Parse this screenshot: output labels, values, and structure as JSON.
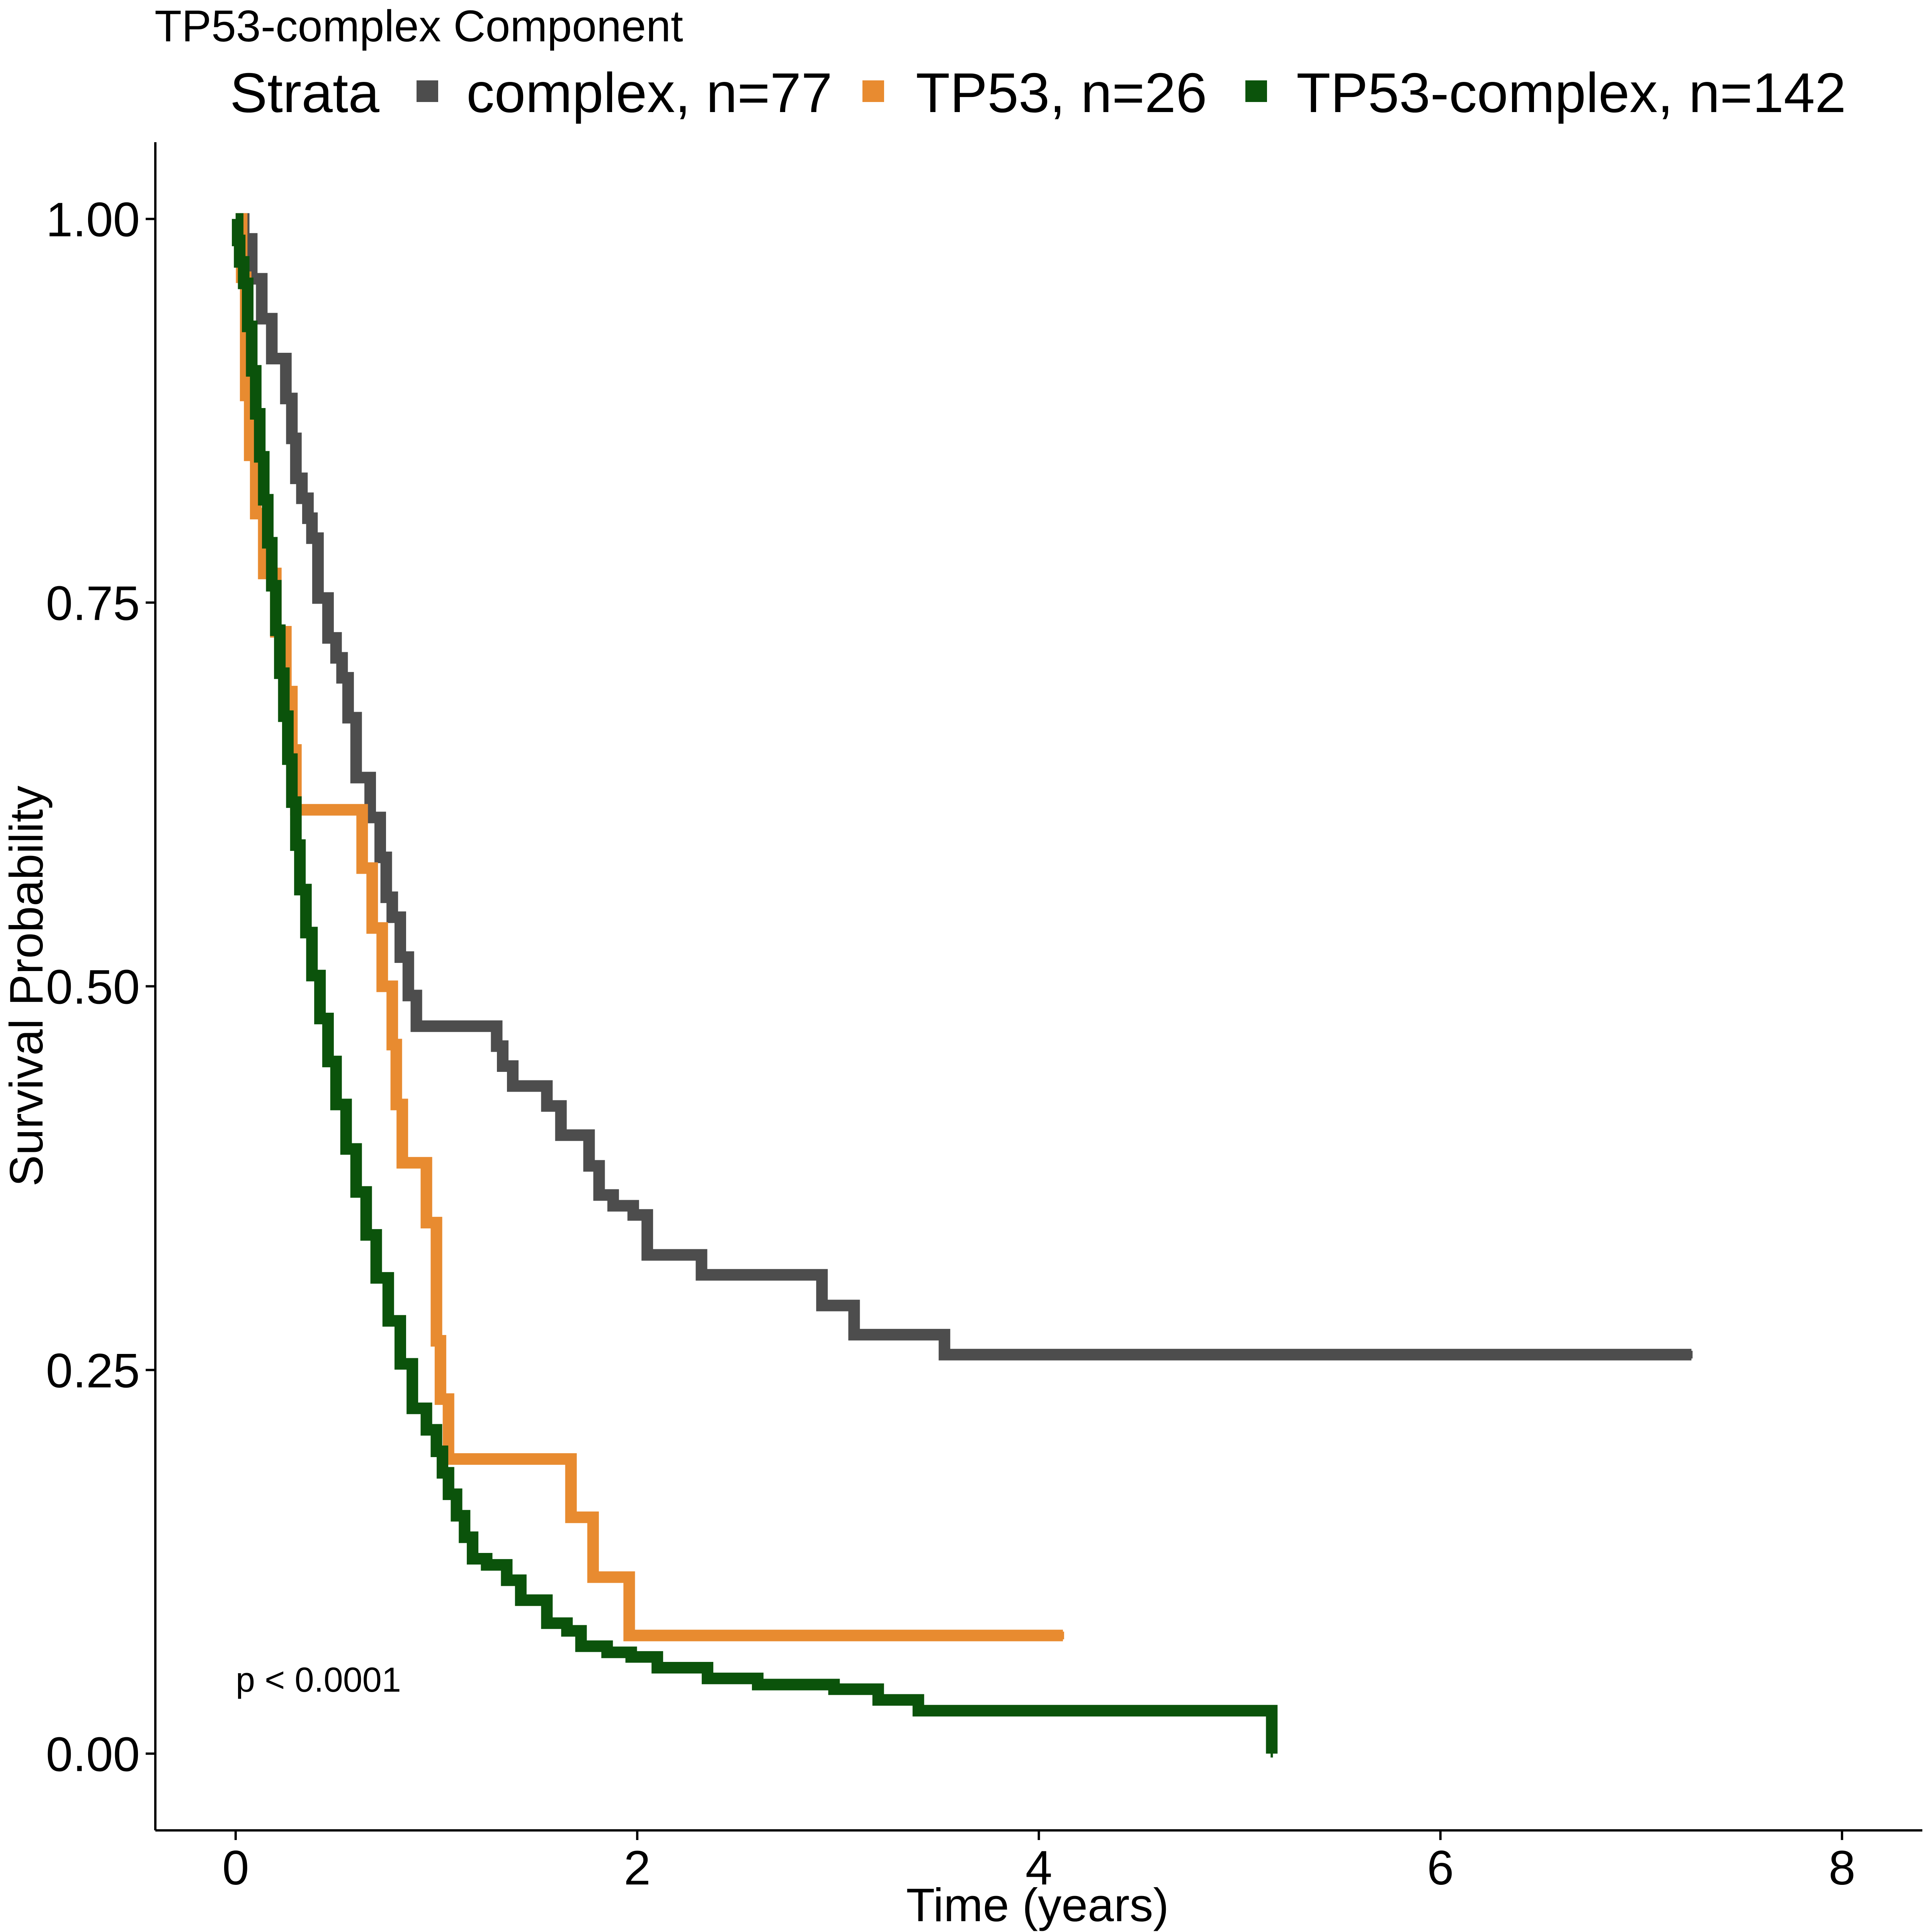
{
  "chart_data": {
    "type": "line",
    "step": true,
    "title": "TP53-complex Component",
    "xlabel": "Time (years)",
    "ylabel": "Survival Probability",
    "xlim": [
      -0.4,
      8.4
    ],
    "ylim": [
      -0.05,
      1.05
    ],
    "xticks": [
      0,
      2,
      4,
      6,
      8
    ],
    "xtick_labels": [
      "0",
      "2",
      "4",
      "6",
      "8"
    ],
    "yticks": [
      0,
      0.25,
      0.5,
      0.75,
      1.0
    ],
    "ytick_labels": [
      "0.00",
      "0.25",
      "0.50",
      "0.75",
      "1.00"
    ],
    "grid": false,
    "legend": {
      "title": "Strata",
      "position": "top"
    },
    "annotation": "p < 0.0001",
    "series": [
      {
        "name": "complex, n=77",
        "color": "#4d4d4d",
        "x": [
          0,
          0.04,
          0.08,
          0.13,
          0.18,
          0.25,
          0.28,
          0.3,
          0.33,
          0.36,
          0.38,
          0.41,
          0.46,
          0.5,
          0.53,
          0.56,
          0.6,
          0.67,
          0.72,
          0.75,
          0.78,
          0.82,
          0.86,
          0.9,
          1.1,
          1.3,
          1.33,
          1.38,
          1.55,
          1.62,
          1.76,
          1.81,
          1.88,
          1.98,
          2.05,
          2.32,
          2.6,
          2.92,
          3.08,
          3.53,
          7.25
        ],
        "y": [
          1.0,
          0.987,
          0.961,
          0.935,
          0.909,
          0.883,
          0.857,
          0.831,
          0.818,
          0.805,
          0.792,
          0.753,
          0.727,
          0.714,
          0.701,
          0.675,
          0.636,
          0.61,
          0.584,
          0.558,
          0.545,
          0.519,
          0.494,
          0.474,
          0.474,
          0.461,
          0.448,
          0.435,
          0.422,
          0.403,
          0.383,
          0.364,
          0.357,
          0.351,
          0.325,
          0.312,
          0.312,
          0.292,
          0.273,
          0.26,
          0.26
        ]
      },
      {
        "name": "TP53, n=26",
        "color": "#e88b30",
        "x": [
          0,
          0.03,
          0.05,
          0.07,
          0.1,
          0.14,
          0.2,
          0.25,
          0.28,
          0.3,
          0.6,
          0.63,
          0.68,
          0.73,
          0.78,
          0.8,
          0.83,
          0.95,
          1.0,
          1.02,
          1.06,
          1.58,
          1.67,
          1.78,
          1.96,
          4.12
        ],
        "y": [
          1.0,
          0.962,
          0.885,
          0.846,
          0.808,
          0.769,
          0.731,
          0.692,
          0.654,
          0.615,
          0.615,
          0.577,
          0.538,
          0.5,
          0.462,
          0.423,
          0.385,
          0.346,
          0.269,
          0.231,
          0.192,
          0.192,
          0.154,
          0.115,
          0.077,
          0.077
        ]
      },
      {
        "name": "TP53-complex, n=142",
        "color": "#0b530b",
        "x": [
          0,
          0.01,
          0.02,
          0.04,
          0.06,
          0.08,
          0.1,
          0.12,
          0.14,
          0.16,
          0.18,
          0.2,
          0.22,
          0.24,
          0.26,
          0.28,
          0.3,
          0.32,
          0.35,
          0.38,
          0.42,
          0.46,
          0.5,
          0.55,
          0.6,
          0.65,
          0.7,
          0.76,
          0.82,
          0.88,
          0.95,
          1.0,
          1.03,
          1.06,
          1.1,
          1.14,
          1.18,
          1.25,
          1.35,
          1.42,
          1.55,
          1.65,
          1.72,
          1.85,
          1.97,
          2.1,
          2.35,
          2.6,
          2.98,
          3.2,
          3.4,
          3.7,
          5.15,
          5.16
        ],
        "y": [
          1.0,
          0.986,
          0.972,
          0.958,
          0.93,
          0.901,
          0.873,
          0.845,
          0.817,
          0.789,
          0.761,
          0.732,
          0.704,
          0.676,
          0.648,
          0.62,
          0.592,
          0.563,
          0.535,
          0.507,
          0.479,
          0.451,
          0.423,
          0.394,
          0.366,
          0.338,
          0.31,
          0.282,
          0.254,
          0.225,
          0.211,
          0.197,
          0.183,
          0.169,
          0.155,
          0.141,
          0.127,
          0.123,
          0.113,
          0.1,
          0.085,
          0.08,
          0.07,
          0.066,
          0.063,
          0.056,
          0.049,
          0.045,
          0.042,
          0.035,
          0.028,
          0.028,
          0.028,
          0.0
        ]
      }
    ]
  }
}
